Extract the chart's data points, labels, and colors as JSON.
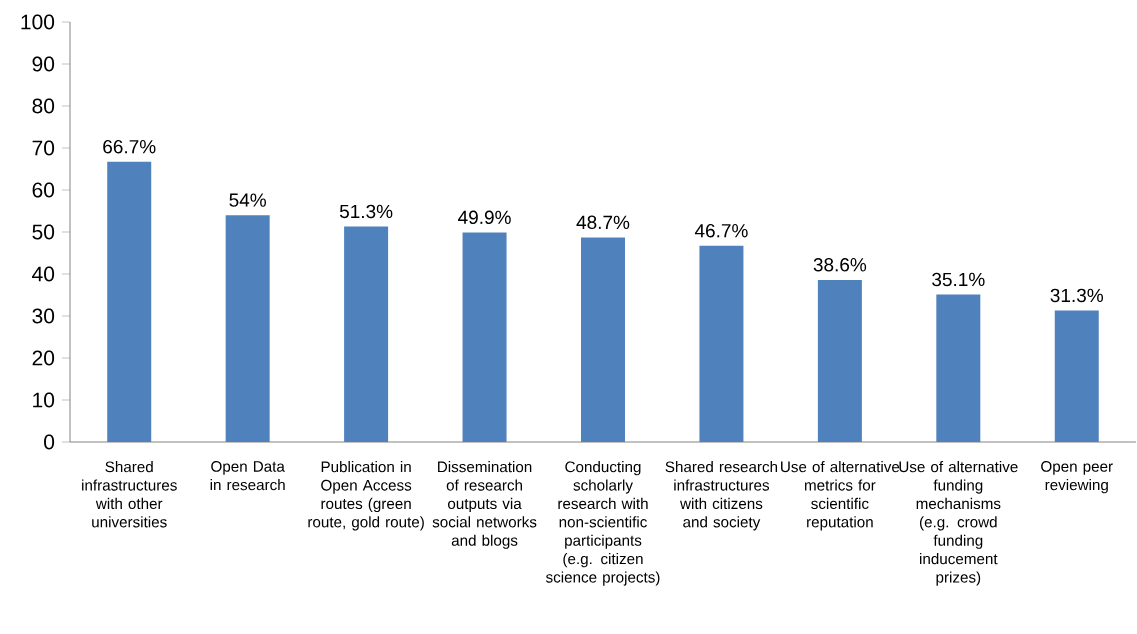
{
  "chart_data": {
    "type": "bar",
    "categories": [
      "Shared infrastructures with other universities",
      "Open Data in research",
      "Publication in Open Access routes (green route, gold route)",
      "Dissemination of research outputs via social networks and blogs",
      "Conducting scholarly research with non-scientific participants (e.g. citizen science projects)",
      "Shared research infrastructures with citizens and society",
      "Use of alternative metrics for scientific reputation",
      "Use of alternative funding mechanisms (e.g. crowd funding inducement prizes)",
      "Open peer reviewing"
    ],
    "values": [
      66.7,
      54,
      51.3,
      49.9,
      48.7,
      46.7,
      38.6,
      35.1,
      31.3
    ],
    "value_labels": [
      "66.7%",
      "54%",
      "51.3%",
      "49.9%",
      "48.7%",
      "46.7%",
      "38.6%",
      "35.1%",
      "31.3%"
    ],
    "color": "#4f81bd",
    "ylim": [
      0,
      100
    ],
    "yticks": [
      0,
      10,
      20,
      30,
      40,
      50,
      60,
      70,
      80,
      90,
      100
    ]
  }
}
